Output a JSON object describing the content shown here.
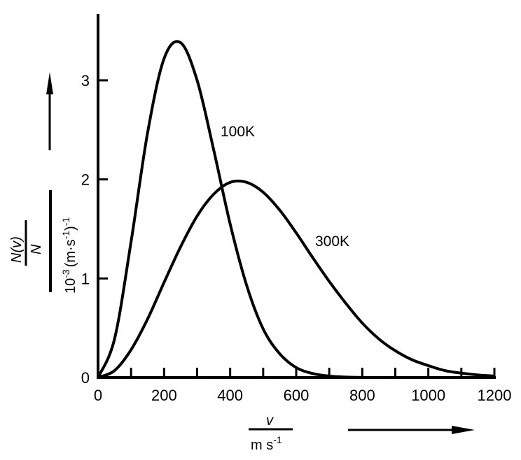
{
  "chart_data": {
    "type": "line",
    "title": "",
    "xlabel": {
      "numerator": "v",
      "denominator": "m s",
      "denominator_exp": "-1"
    },
    "ylabel": {
      "numerator": "N(v)",
      "numerator_under": "N",
      "denominator": "10",
      "denominator_exp": "-3",
      "denominator_unit": "(m·s",
      "unit_exp": "-1",
      "close": ")",
      "close_exp": "-1"
    },
    "xlim": [
      0,
      1200
    ],
    "ylim": [
      0,
      3.67
    ],
    "xticks": [
      0,
      200,
      400,
      600,
      800,
      1000,
      1200
    ],
    "xminor_step": 100,
    "yticks": [
      0,
      1,
      2,
      3
    ],
    "grid": false,
    "series": [
      {
        "name": "100K",
        "x": [
          0,
          50,
          100,
          150,
          200,
          250,
          300,
          350,
          400,
          450,
          500,
          550,
          600,
          650,
          700,
          750,
          800,
          900,
          1000,
          1100,
          1200
        ],
        "y": [
          0,
          0.39,
          1.37,
          2.47,
          3.22,
          3.38,
          3.0,
          2.3,
          1.55,
          0.93,
          0.49,
          0.24,
          0.1,
          0.04,
          0.014,
          0.004,
          0.001,
          0,
          0,
          0,
          0
        ]
      },
      {
        "name": "300K",
        "x": [
          0,
          50,
          100,
          150,
          200,
          250,
          300,
          350,
          400,
          450,
          500,
          550,
          600,
          650,
          700,
          750,
          800,
          850,
          900,
          950,
          1000,
          1050,
          1100,
          1150,
          1200
        ],
        "y": [
          0,
          0.07,
          0.28,
          0.59,
          0.96,
          1.32,
          1.63,
          1.85,
          1.97,
          1.97,
          1.87,
          1.69,
          1.46,
          1.21,
          0.97,
          0.75,
          0.55,
          0.39,
          0.27,
          0.18,
          0.12,
          0.07,
          0.044,
          0.026,
          0.015
        ]
      }
    ],
    "annotations": [
      "100K",
      "300K"
    ]
  }
}
